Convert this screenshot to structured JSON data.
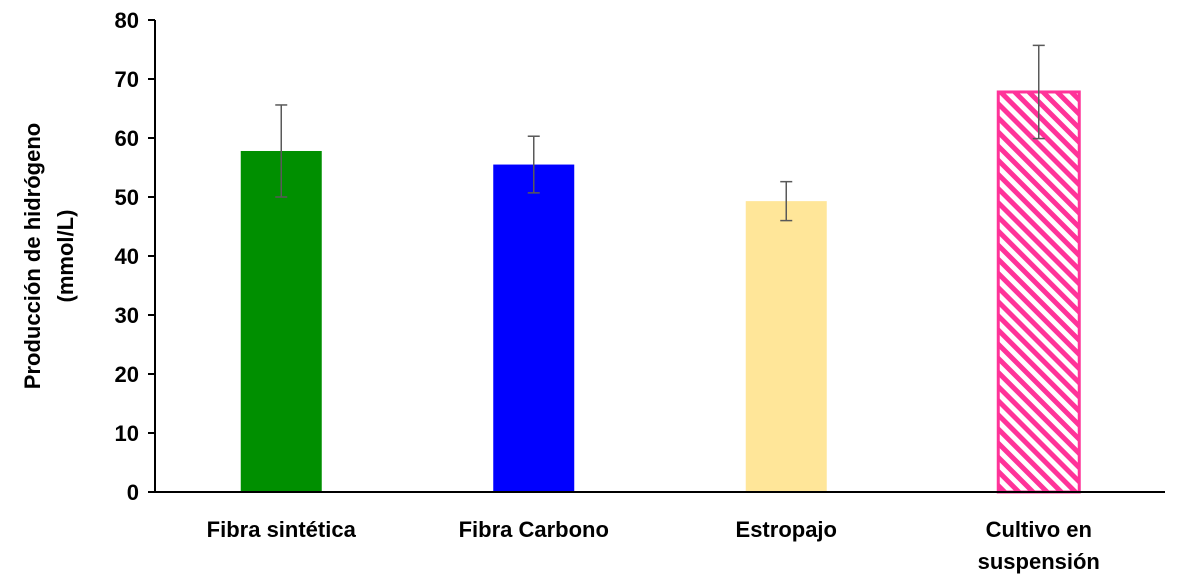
{
  "chart_data": {
    "type": "bar",
    "categories": [
      [
        "Fibra sintética"
      ],
      [
        "Fibra Carbono"
      ],
      [
        "Estropajo"
      ],
      [
        "Cultivo en",
        "suspensión"
      ]
    ],
    "values": [
      57.8,
      55.5,
      49.3,
      67.8
    ],
    "errors": [
      7.8,
      4.8,
      3.3,
      7.9
    ],
    "bar_colors": [
      "#008f00",
      "#0000ff",
      "#ffe699",
      "#ff3399"
    ],
    "bar_patterns": [
      "solid",
      "solid",
      "solid",
      "diagonal-hatch"
    ],
    "ylabel": [
      "Producción de hidrógeno",
      "(mmol/L)"
    ],
    "xlabel": "",
    "title": "",
    "ylim": [
      0,
      80
    ],
    "yticks": [
      0,
      10,
      20,
      30,
      40,
      50,
      60,
      70,
      80
    ],
    "grid": false,
    "legend": "none"
  }
}
